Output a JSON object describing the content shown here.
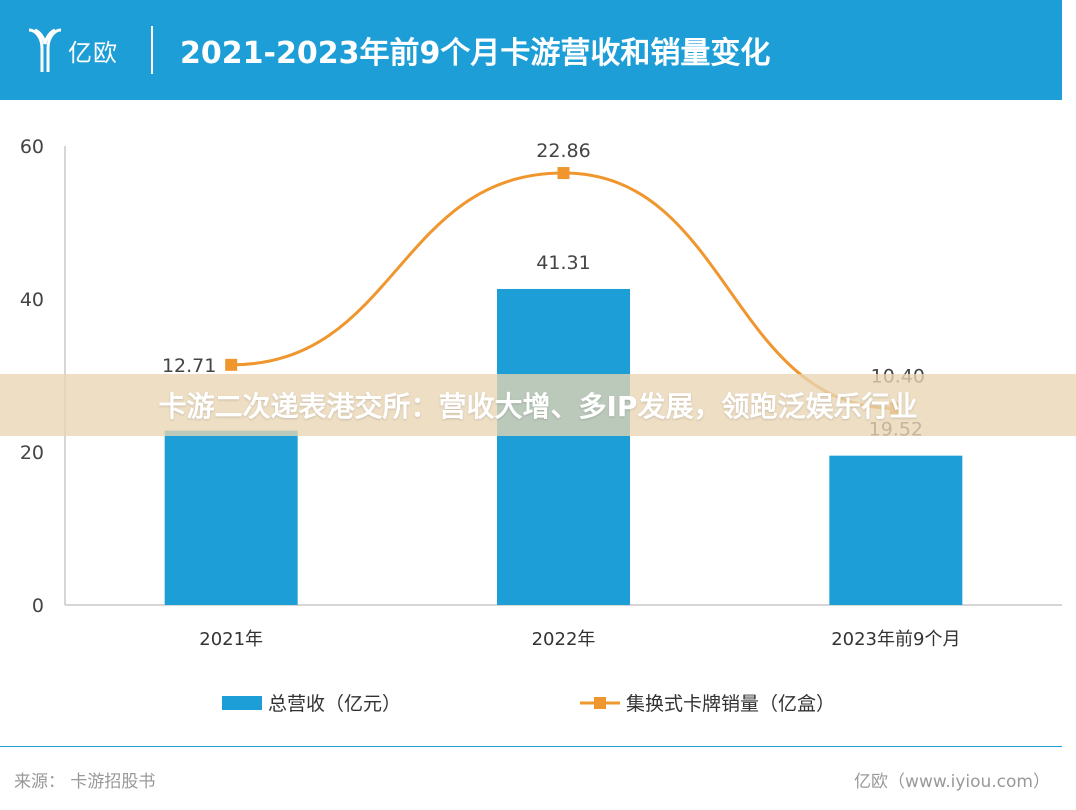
{
  "header": {
    "logo_text": "亿欧",
    "title": "2021-2023年前9个月卡游营收和销量变化"
  },
  "chart_data": {
    "type": "bar",
    "categories": [
      "2021年",
      "2022年",
      "2023年前9个月"
    ],
    "ylim": [
      0,
      60
    ],
    "yticks": [
      0,
      20,
      40,
      60
    ],
    "series": [
      {
        "name": "总营收（亿元）",
        "type": "bar",
        "values": [
          22.8,
          41.31,
          19.52
        ],
        "labels": [
          "",
          "41.31",
          "19.52"
        ],
        "color": "#1e9ed6"
      },
      {
        "name": "集换式卡牌销量（亿盒）",
        "type": "line",
        "values": [
          12.71,
          22.86,
          10.4
        ],
        "labels": [
          "12.71",
          "22.86",
          "10.40"
        ],
        "color": "#f0962e"
      }
    ],
    "grid": false,
    "legend_position": "bottom"
  },
  "overlay": {
    "text": "卡游二次递表港交所：营收大增、多IP发展，领跑泛娱乐行业"
  },
  "footer": {
    "source": "来源：  卡游招股书",
    "brand": "亿欧（www.iyiou.com）"
  }
}
